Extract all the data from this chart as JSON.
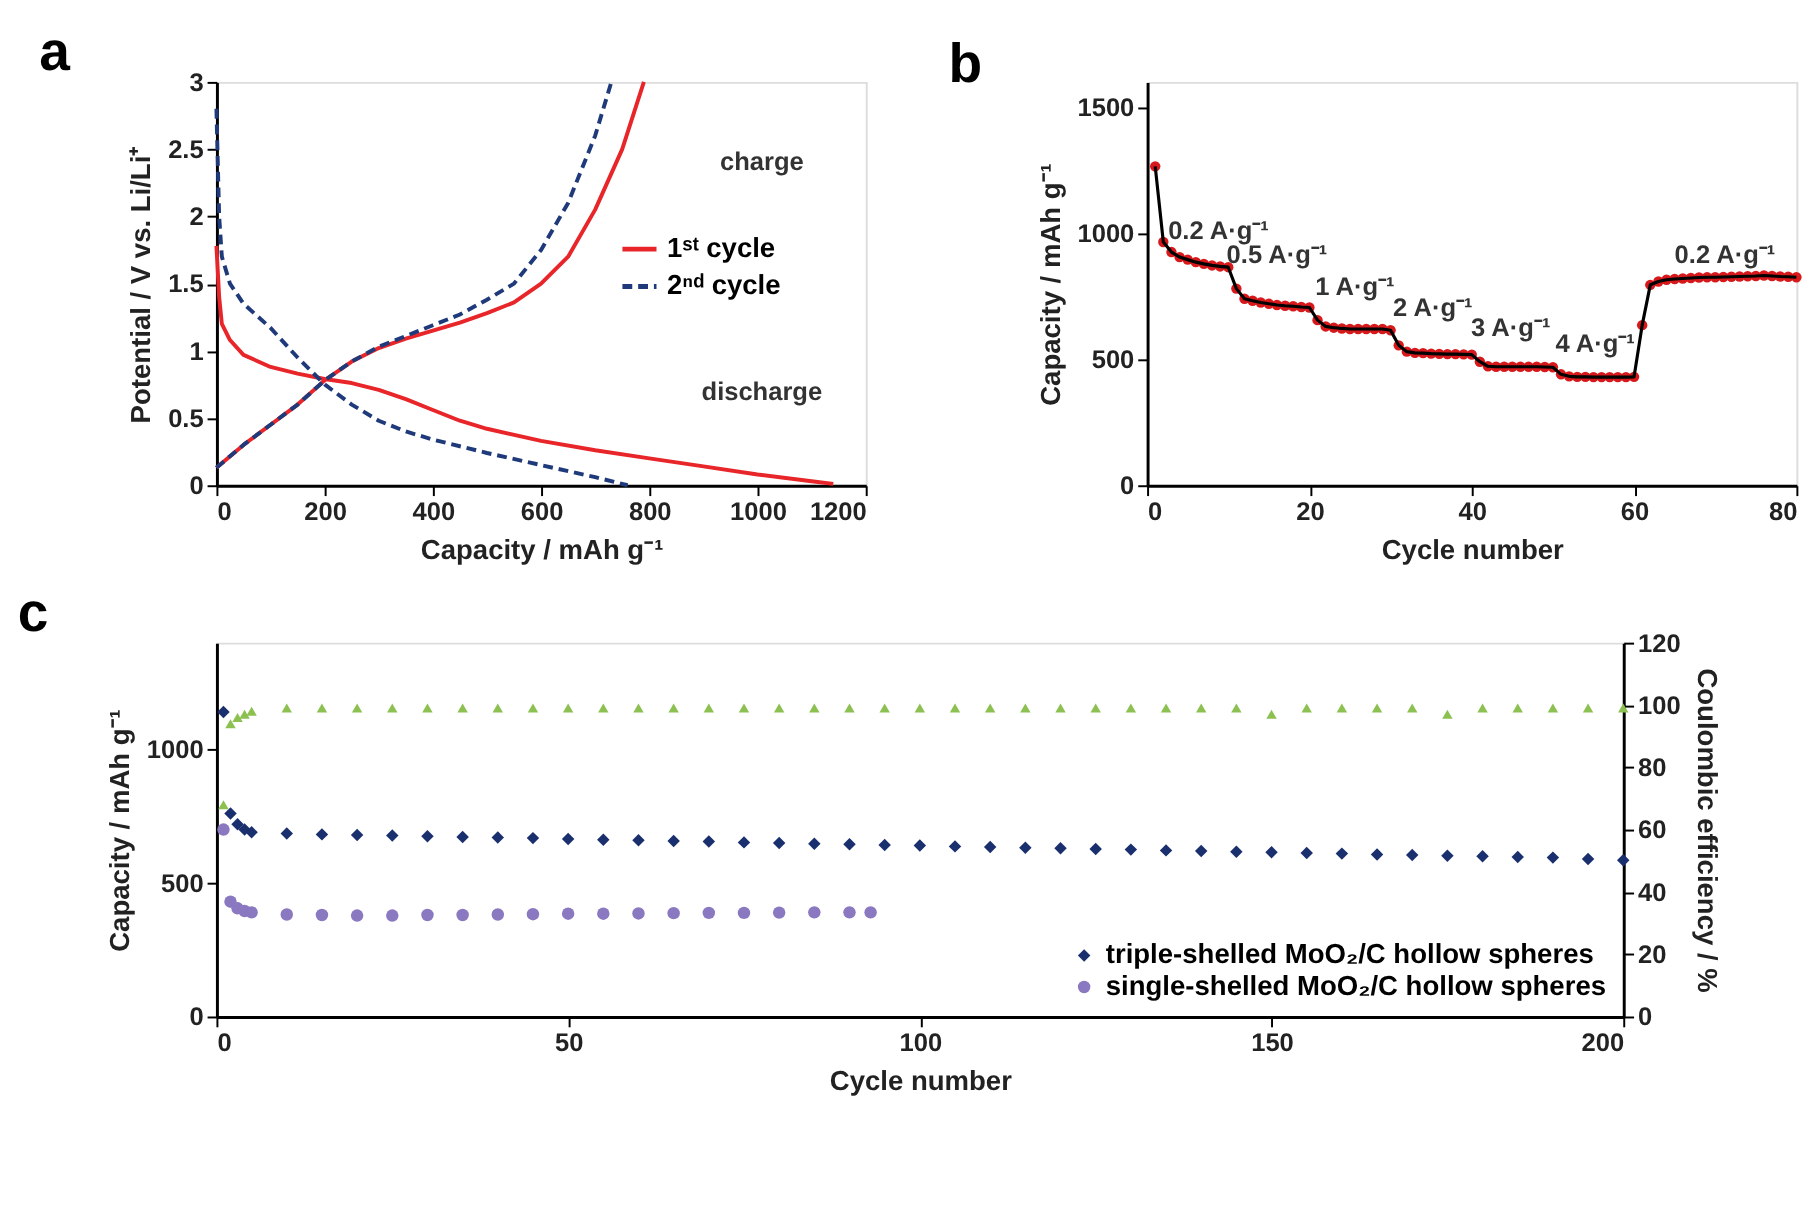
{
  "chart_data": [
    {
      "type": "line",
      "title": "a",
      "xlabel": "Capacity / mAh g⁻¹",
      "ylabel": "Potential / V vs. Li/Li⁺",
      "xlim": [
        0,
        1200
      ],
      "xticks": [
        0,
        200,
        400,
        600,
        800,
        1000,
        1200
      ],
      "ylim": [
        0,
        3
      ],
      "yticks": [
        0,
        0.5,
        1,
        1.5,
        2,
        2.5,
        3
      ],
      "grid": false,
      "legend": "right",
      "annotations": [
        "charge",
        "discharge"
      ],
      "series": [
        {
          "name": "1ˢᵗ cycle",
          "color": "#e8262a",
          "line_style": "solid",
          "x": [
            0,
            5,
            10,
            25,
            50,
            100,
            150,
            200,
            250,
            300,
            350,
            400,
            450,
            500,
            600,
            700,
            800,
            900,
            1000,
            1100,
            1140,
            null,
            0,
            50,
            100,
            150,
            200,
            250,
            300,
            350,
            400,
            450,
            500,
            550,
            600,
            650,
            700,
            750,
            790
          ],
          "values": [
            1.78,
            1.4,
            1.2,
            1.08,
            0.97,
            0.88,
            0.83,
            0.79,
            0.76,
            0.71,
            0.64,
            0.56,
            0.48,
            0.42,
            0.33,
            0.26,
            0.2,
            0.14,
            0.08,
            0.03,
            0.01,
            null,
            0.13,
            0.3,
            0.45,
            0.6,
            0.78,
            0.92,
            1.02,
            1.09,
            1.15,
            1.21,
            1.28,
            1.36,
            1.5,
            1.7,
            2.05,
            2.5,
            3.0
          ]
        },
        {
          "name": "2ⁿᵈ cycle",
          "color": "#1f3a7a",
          "line_style": "dashed",
          "x": [
            0,
            5,
            10,
            25,
            50,
            100,
            150,
            200,
            250,
            300,
            350,
            400,
            500,
            600,
            700,
            760,
            null,
            0,
            50,
            100,
            150,
            200,
            250,
            300,
            350,
            400,
            450,
            500,
            550,
            600,
            650,
            700,
            730
          ],
          "values": [
            2.8,
            2.0,
            1.7,
            1.5,
            1.35,
            1.17,
            0.95,
            0.75,
            0.6,
            0.48,
            0.4,
            0.34,
            0.24,
            0.15,
            0.06,
            0.0,
            null,
            0.13,
            0.3,
            0.45,
            0.6,
            0.78,
            0.92,
            1.03,
            1.11,
            1.19,
            1.27,
            1.38,
            1.5,
            1.75,
            2.1,
            2.6,
            3.0
          ]
        }
      ]
    },
    {
      "type": "line",
      "title": "b",
      "xlabel": "Cycle number",
      "ylabel": "Capacity / mAh g⁻¹",
      "xlim": [
        0,
        80
      ],
      "xticks": [
        0,
        20,
        40,
        60,
        80
      ],
      "ylim": [
        0,
        1600
      ],
      "yticks": [
        0,
        500,
        1000,
        1500
      ],
      "grid": false,
      "x": [
        1,
        2,
        3,
        4,
        5,
        6,
        7,
        8,
        9,
        10,
        11,
        12,
        13,
        14,
        15,
        16,
        17,
        18,
        19,
        20,
        21,
        22,
        23,
        24,
        25,
        26,
        27,
        28,
        29,
        30,
        31,
        32,
        33,
        34,
        35,
        36,
        37,
        38,
        39,
        40,
        41,
        42,
        43,
        44,
        45,
        46,
        47,
        48,
        49,
        50,
        51,
        52,
        53,
        54,
        55,
        56,
        57,
        58,
        59,
        60,
        61,
        62,
        63,
        64,
        65,
        66,
        67,
        68,
        69,
        70,
        71,
        72,
        73,
        74,
        75,
        76,
        77,
        78,
        79,
        80
      ],
      "annotations": [
        "0.2 A·g⁻¹",
        "0.5 A·g⁻¹",
        "1 A·g⁻¹",
        "2 A·g⁻¹",
        "3 A·g⁻¹",
        "4 A·g⁻¹",
        "0.2 A·g⁻¹"
      ],
      "series": [
        {
          "type": "line",
          "color": "#000000",
          "line_style": "solid",
          "values": [
            1265,
            965,
            925,
            905,
            895,
            885,
            878,
            872,
            868,
            865,
            780,
            740,
            732,
            725,
            720,
            715,
            712,
            710,
            707,
            705,
            655,
            630,
            625,
            622,
            620,
            620,
            620,
            620,
            620,
            615,
            555,
            530,
            525,
            524,
            522,
            521,
            520,
            520,
            519,
            518,
            490,
            472,
            470,
            470,
            470,
            470,
            470,
            470,
            469,
            468,
            440,
            432,
            430,
            430,
            429,
            429,
            429,
            429,
            429,
            430,
            635,
            795,
            808,
            815,
            818,
            820,
            822,
            824,
            825,
            825,
            826,
            827,
            828,
            829,
            830,
            832,
            830,
            828,
            827,
            825
          ]
        },
        {
          "type": "scatter",
          "marker": "circle",
          "color": "#d7191c",
          "values": [
            1265,
            965,
            925,
            905,
            895,
            885,
            878,
            872,
            868,
            865,
            780,
            740,
            732,
            725,
            720,
            715,
            712,
            710,
            707,
            705,
            655,
            630,
            625,
            622,
            620,
            620,
            620,
            620,
            620,
            615,
            555,
            530,
            525,
            524,
            522,
            521,
            520,
            520,
            519,
            518,
            490,
            472,
            470,
            470,
            470,
            470,
            470,
            470,
            469,
            468,
            440,
            432,
            430,
            430,
            429,
            429,
            429,
            429,
            429,
            430,
            635,
            795,
            808,
            815,
            818,
            820,
            822,
            824,
            825,
            825,
            826,
            827,
            828,
            829,
            830,
            832,
            830,
            828,
            827,
            825
          ]
        }
      ]
    },
    {
      "type": "scatter",
      "title": "c",
      "xlabel": "Cycle number",
      "ylabel": "Capacity / mAh g⁻¹",
      "y2label": "Coulombic efficiency / %",
      "xlim": [
        0,
        200
      ],
      "xticks": [
        0,
        50,
        100,
        150,
        200
      ],
      "ylim": [
        0,
        1400
      ],
      "yticks": [
        0,
        500,
        1000
      ],
      "y2lim": [
        0,
        120
      ],
      "y2ticks": [
        0,
        20,
        40,
        60,
        80,
        100,
        120
      ],
      "grid": false,
      "legend": "bottom right",
      "series": [
        {
          "name": "triple-shelled MoO₂/C hollow spheres",
          "color": "#1a2f6e",
          "marker": "diamond",
          "x": [
            1,
            2,
            3,
            4,
            5,
            10,
            15,
            20,
            25,
            30,
            35,
            40,
            45,
            50,
            55,
            60,
            65,
            70,
            75,
            80,
            85,
            90,
            95,
            100,
            105,
            110,
            115,
            120,
            125,
            130,
            135,
            140,
            145,
            150,
            155,
            160,
            165,
            170,
            175,
            180,
            185,
            190,
            195,
            200
          ],
          "values": [
            1140,
            760,
            720,
            700,
            690,
            685,
            682,
            680,
            678,
            675,
            672,
            670,
            668,
            665,
            662,
            660,
            657,
            655,
            652,
            650,
            647,
            645,
            642,
            640,
            637,
            635,
            632,
            630,
            627,
            625,
            622,
            620,
            617,
            615,
            612,
            610,
            607,
            605,
            602,
            600,
            597,
            595,
            590,
            585
          ]
        },
        {
          "name": "single-shelled MoO₂/C hollow spheres",
          "color": "#8a78c0",
          "marker": "circle",
          "x": [
            1,
            2,
            3,
            4,
            5,
            10,
            15,
            20,
            25,
            30,
            35,
            40,
            45,
            50,
            55,
            60,
            65,
            70,
            75,
            80,
            85,
            90,
            93
          ],
          "values": [
            700,
            430,
            405,
            395,
            390,
            382,
            380,
            378,
            378,
            380,
            380,
            382,
            383,
            385,
            385,
            386,
            387,
            388,
            388,
            389,
            390,
            390,
            390
          ]
        },
        {
          "color": "#8cc152",
          "marker": "triangle",
          "axis": "y2",
          "x": [
            1,
            2,
            3,
            4,
            5,
            10,
            15,
            20,
            25,
            30,
            35,
            40,
            45,
            50,
            55,
            60,
            65,
            70,
            75,
            80,
            85,
            90,
            95,
            100,
            105,
            110,
            115,
            120,
            125,
            130,
            135,
            140,
            145,
            150,
            155,
            160,
            165,
            170,
            175,
            180,
            185,
            190,
            195,
            200
          ],
          "values": [
            68,
            94,
            96,
            97,
            98,
            99,
            99,
            99,
            99,
            99,
            99,
            99,
            99,
            99,
            99,
            99,
            99,
            99,
            99,
            99,
            99,
            99,
            99,
            99,
            99,
            99,
            99,
            99,
            99,
            99,
            99,
            99,
            99,
            97,
            99,
            99,
            99,
            99,
            97,
            99,
            99,
            99,
            99,
            99
          ]
        }
      ]
    }
  ]
}
